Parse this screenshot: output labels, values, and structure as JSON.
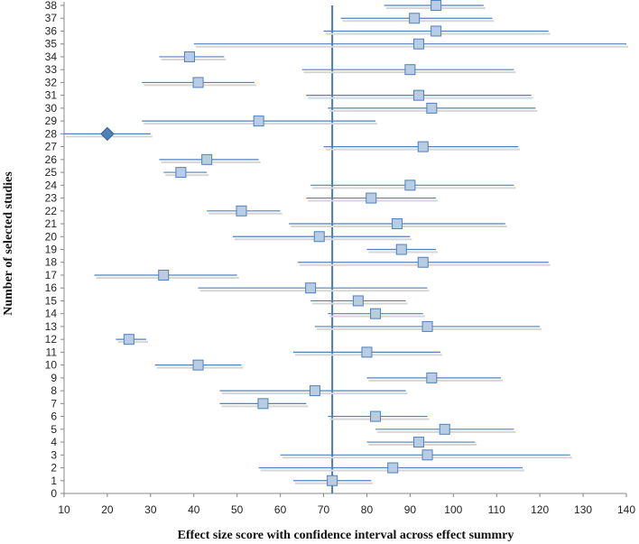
{
  "chart_data": {
    "type": "scatter",
    "subtype": "forest-plot",
    "title": "",
    "xlabel": "Effect size score with confidence interval across effect summry",
    "ylabel": "Number of selected studies",
    "xlim": [
      10,
      140
    ],
    "ylim": [
      0,
      38
    ],
    "xticks": [
      10,
      20,
      30,
      40,
      50,
      60,
      70,
      80,
      90,
      100,
      110,
      120,
      130,
      140
    ],
    "yticks": [
      0,
      1,
      2,
      3,
      4,
      5,
      6,
      7,
      8,
      9,
      10,
      11,
      12,
      13,
      14,
      15,
      16,
      17,
      18,
      19,
      20,
      21,
      22,
      23,
      24,
      25,
      26,
      27,
      28,
      29,
      30,
      31,
      32,
      33,
      34,
      35,
      36,
      37,
      38
    ],
    "grid": false,
    "summary_line_x": 72,
    "colors": {
      "interval_line": "#4f81bd",
      "marker_fill": "#b8cce4",
      "marker_stroke": "#4f81bd",
      "summary_line": "#4a7ab5",
      "outlier_fill": "#4f81bd",
      "outlier_stroke": "#365f91",
      "axis": "#888888"
    },
    "studies": [
      {
        "id": 1,
        "effect": 72,
        "low": 63,
        "high": 81
      },
      {
        "id": 2,
        "effect": 86,
        "low": 55,
        "high": 116
      },
      {
        "id": 3,
        "effect": 94,
        "low": 60,
        "high": 127
      },
      {
        "id": 4,
        "effect": 92,
        "low": 80,
        "high": 105
      },
      {
        "id": 5,
        "effect": 98,
        "low": 82,
        "high": 114
      },
      {
        "id": 6,
        "effect": 82,
        "low": 71,
        "high": 94
      },
      {
        "id": 7,
        "effect": 56,
        "low": 46,
        "high": 66
      },
      {
        "id": 8,
        "effect": 68,
        "low": 46,
        "high": 89
      },
      {
        "id": 9,
        "effect": 95,
        "low": 80,
        "high": 111
      },
      {
        "id": 10,
        "effect": 41,
        "low": 31,
        "high": 51
      },
      {
        "id": 11,
        "effect": 80,
        "low": 63,
        "high": 97
      },
      {
        "id": 12,
        "effect": 25,
        "low": 22,
        "high": 29
      },
      {
        "id": 13,
        "effect": 94,
        "low": 68,
        "high": 120
      },
      {
        "id": 14,
        "effect": 82,
        "low": 71,
        "high": 93
      },
      {
        "id": 15,
        "effect": 78,
        "low": 67,
        "high": 89
      },
      {
        "id": 16,
        "effect": 67,
        "low": 41,
        "high": 94
      },
      {
        "id": 17,
        "effect": 33,
        "low": 17,
        "high": 50
      },
      {
        "id": 18,
        "effect": 93,
        "low": 64,
        "high": 122
      },
      {
        "id": 19,
        "effect": 88,
        "low": 80,
        "high": 96
      },
      {
        "id": 20,
        "effect": 69,
        "low": 49,
        "high": 90
      },
      {
        "id": 21,
        "effect": 87,
        "low": 62,
        "high": 112
      },
      {
        "id": 22,
        "effect": 51,
        "low": 43,
        "high": 60
      },
      {
        "id": 23,
        "effect": 81,
        "low": 66,
        "high": 96
      },
      {
        "id": 24,
        "effect": 90,
        "low": 67,
        "high": 114
      },
      {
        "id": 25,
        "effect": 37,
        "low": 33,
        "high": 43
      },
      {
        "id": 26,
        "effect": 43,
        "low": 32,
        "high": 55
      },
      {
        "id": 27,
        "effect": 93,
        "low": 70,
        "high": 115
      },
      {
        "id": 28,
        "effect": 20,
        "low": 10,
        "high": 30,
        "marker": "diamond"
      },
      {
        "id": 29,
        "effect": 55,
        "low": 28,
        "high": 82
      },
      {
        "id": 30,
        "effect": 95,
        "low": 71,
        "high": 119
      },
      {
        "id": 31,
        "effect": 92,
        "low": 66,
        "high": 118
      },
      {
        "id": 32,
        "effect": 41,
        "low": 28,
        "high": 54
      },
      {
        "id": 33,
        "effect": 90,
        "low": 65,
        "high": 114
      },
      {
        "id": 34,
        "effect": 39,
        "low": 32,
        "high": 47
      },
      {
        "id": 35,
        "effect": 92,
        "low": 40,
        "high": 140
      },
      {
        "id": 36,
        "effect": 96,
        "low": 70,
        "high": 122
      },
      {
        "id": 37,
        "effect": 91,
        "low": 74,
        "high": 109
      },
      {
        "id": 38,
        "effect": 96,
        "low": 84,
        "high": 107
      }
    ]
  }
}
